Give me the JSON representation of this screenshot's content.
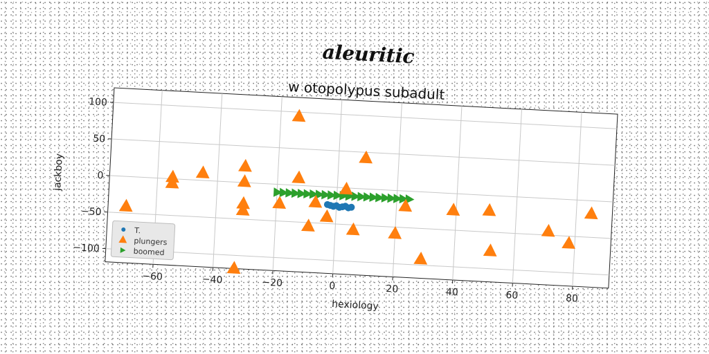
{
  "supertitle": "aleuritic",
  "chart_data": {
    "type": "scatter",
    "title": "w otopolypus subadult",
    "xlabel": "hexiology",
    "ylabel": "jackboy",
    "xlim": [
      -76,
      92
    ],
    "ylim": [
      -118,
      120
    ],
    "xticks": [
      -60,
      -40,
      -20,
      0,
      20,
      40,
      60,
      80
    ],
    "yticks": [
      -100,
      -50,
      0,
      50,
      100
    ],
    "grid": true,
    "legend_position": "lower-left",
    "series": [
      {
        "name": "T.",
        "marker": "circle",
        "color": "#1f77b4",
        "points": [
          [
            -3,
            -24
          ],
          [
            -2,
            -25
          ],
          [
            -1,
            -26
          ],
          [
            0,
            -25
          ],
          [
            1,
            -27
          ],
          [
            2,
            -26
          ],
          [
            3,
            -25
          ],
          [
            4,
            -27
          ],
          [
            5,
            -26
          ]
        ]
      },
      {
        "name": "plungers",
        "marker": "triangle",
        "color": "#ff7f0e",
        "points": [
          [
            -70,
            -41
          ],
          [
            -55,
            -6
          ],
          [
            -55,
            2
          ],
          [
            -45,
            10
          ],
          [
            -31,
            22
          ],
          [
            -31,
            1
          ],
          [
            -31,
            -29
          ],
          [
            -31,
            -38
          ],
          [
            -33,
            -118
          ],
          [
            -14,
            94
          ],
          [
            -13,
            10
          ],
          [
            -19,
            -26
          ],
          [
            -7,
            -22
          ],
          [
            -9,
            -55
          ],
          [
            -3,
            -41
          ],
          [
            3,
            -2
          ],
          [
            6,
            -57
          ],
          [
            9,
            42
          ],
          [
            20,
            -59
          ],
          [
            23,
            -21
          ],
          [
            29,
            -92
          ],
          [
            39,
            -23
          ],
          [
            51,
            -21
          ],
          [
            52,
            -76
          ],
          [
            71,
            -45
          ],
          [
            78,
            -60
          ],
          [
            85,
            -18
          ]
        ]
      },
      {
        "name": "boomed",
        "marker": "triangle-right",
        "color": "#2ca02c",
        "points": [
          [
            -20,
            -11
          ],
          [
            -18,
            -11
          ],
          [
            -16,
            -11
          ],
          [
            -14,
            -11
          ],
          [
            -12,
            -11
          ],
          [
            -10,
            -11
          ],
          [
            -8,
            -11
          ],
          [
            -6,
            -11
          ],
          [
            -4,
            -11
          ],
          [
            -2,
            -11
          ],
          [
            0,
            -11
          ],
          [
            2,
            -11
          ],
          [
            4,
            -11
          ],
          [
            6,
            -11
          ],
          [
            8,
            -11
          ],
          [
            10,
            -11
          ],
          [
            12,
            -11
          ],
          [
            14,
            -11
          ],
          [
            16,
            -11
          ],
          [
            18,
            -11
          ],
          [
            20,
            -11
          ],
          [
            22,
            -11
          ],
          [
            24,
            -11
          ]
        ]
      }
    ]
  }
}
